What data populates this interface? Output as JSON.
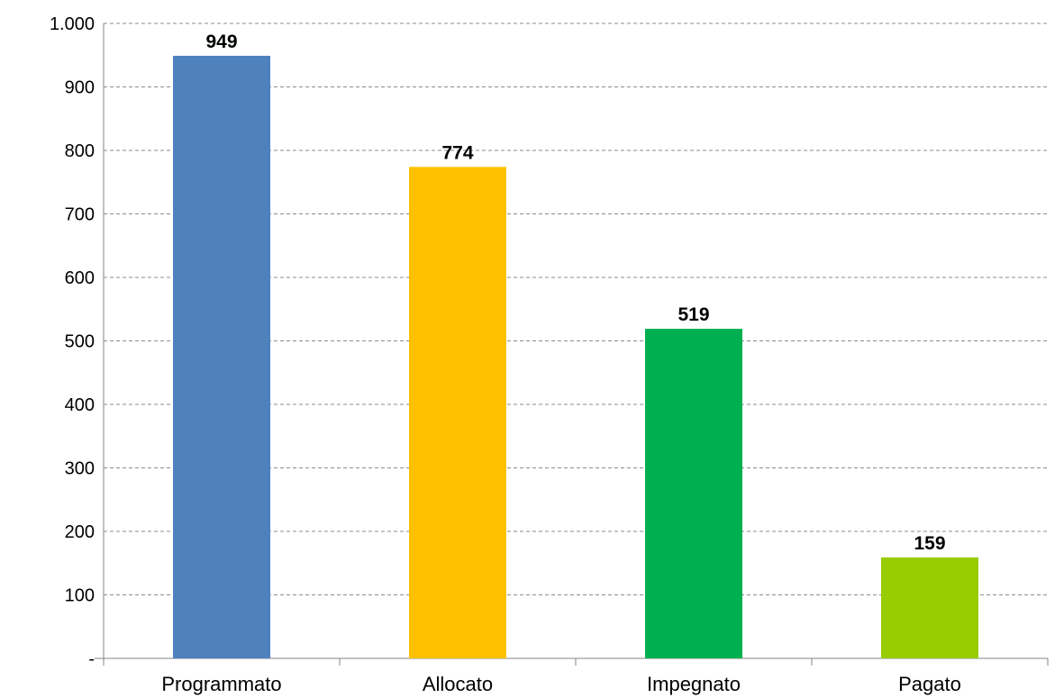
{
  "chart_data": {
    "type": "bar",
    "title": "",
    "xlabel": "",
    "ylabel": "",
    "categories": [
      "Programmato",
      "Allocato",
      "Impegnato",
      "Pagato"
    ],
    "values": [
      949,
      774,
      519,
      159
    ],
    "data_labels": [
      "949",
      "774",
      "519",
      "159"
    ],
    "bar_colors": [
      "#4F81BD",
      "#FFC000",
      "#00B050",
      "#99CC00"
    ],
    "ylim": [
      0,
      1000
    ],
    "yticks": [
      0,
      100,
      200,
      300,
      400,
      500,
      600,
      700,
      800,
      900,
      1000
    ],
    "ytick_labels": [
      "-",
      "100",
      "200",
      "300",
      "400",
      "500",
      "600",
      "700",
      "800",
      "900",
      "1.000"
    ],
    "grid": true,
    "grid_style": "dashed",
    "legend": "none"
  }
}
